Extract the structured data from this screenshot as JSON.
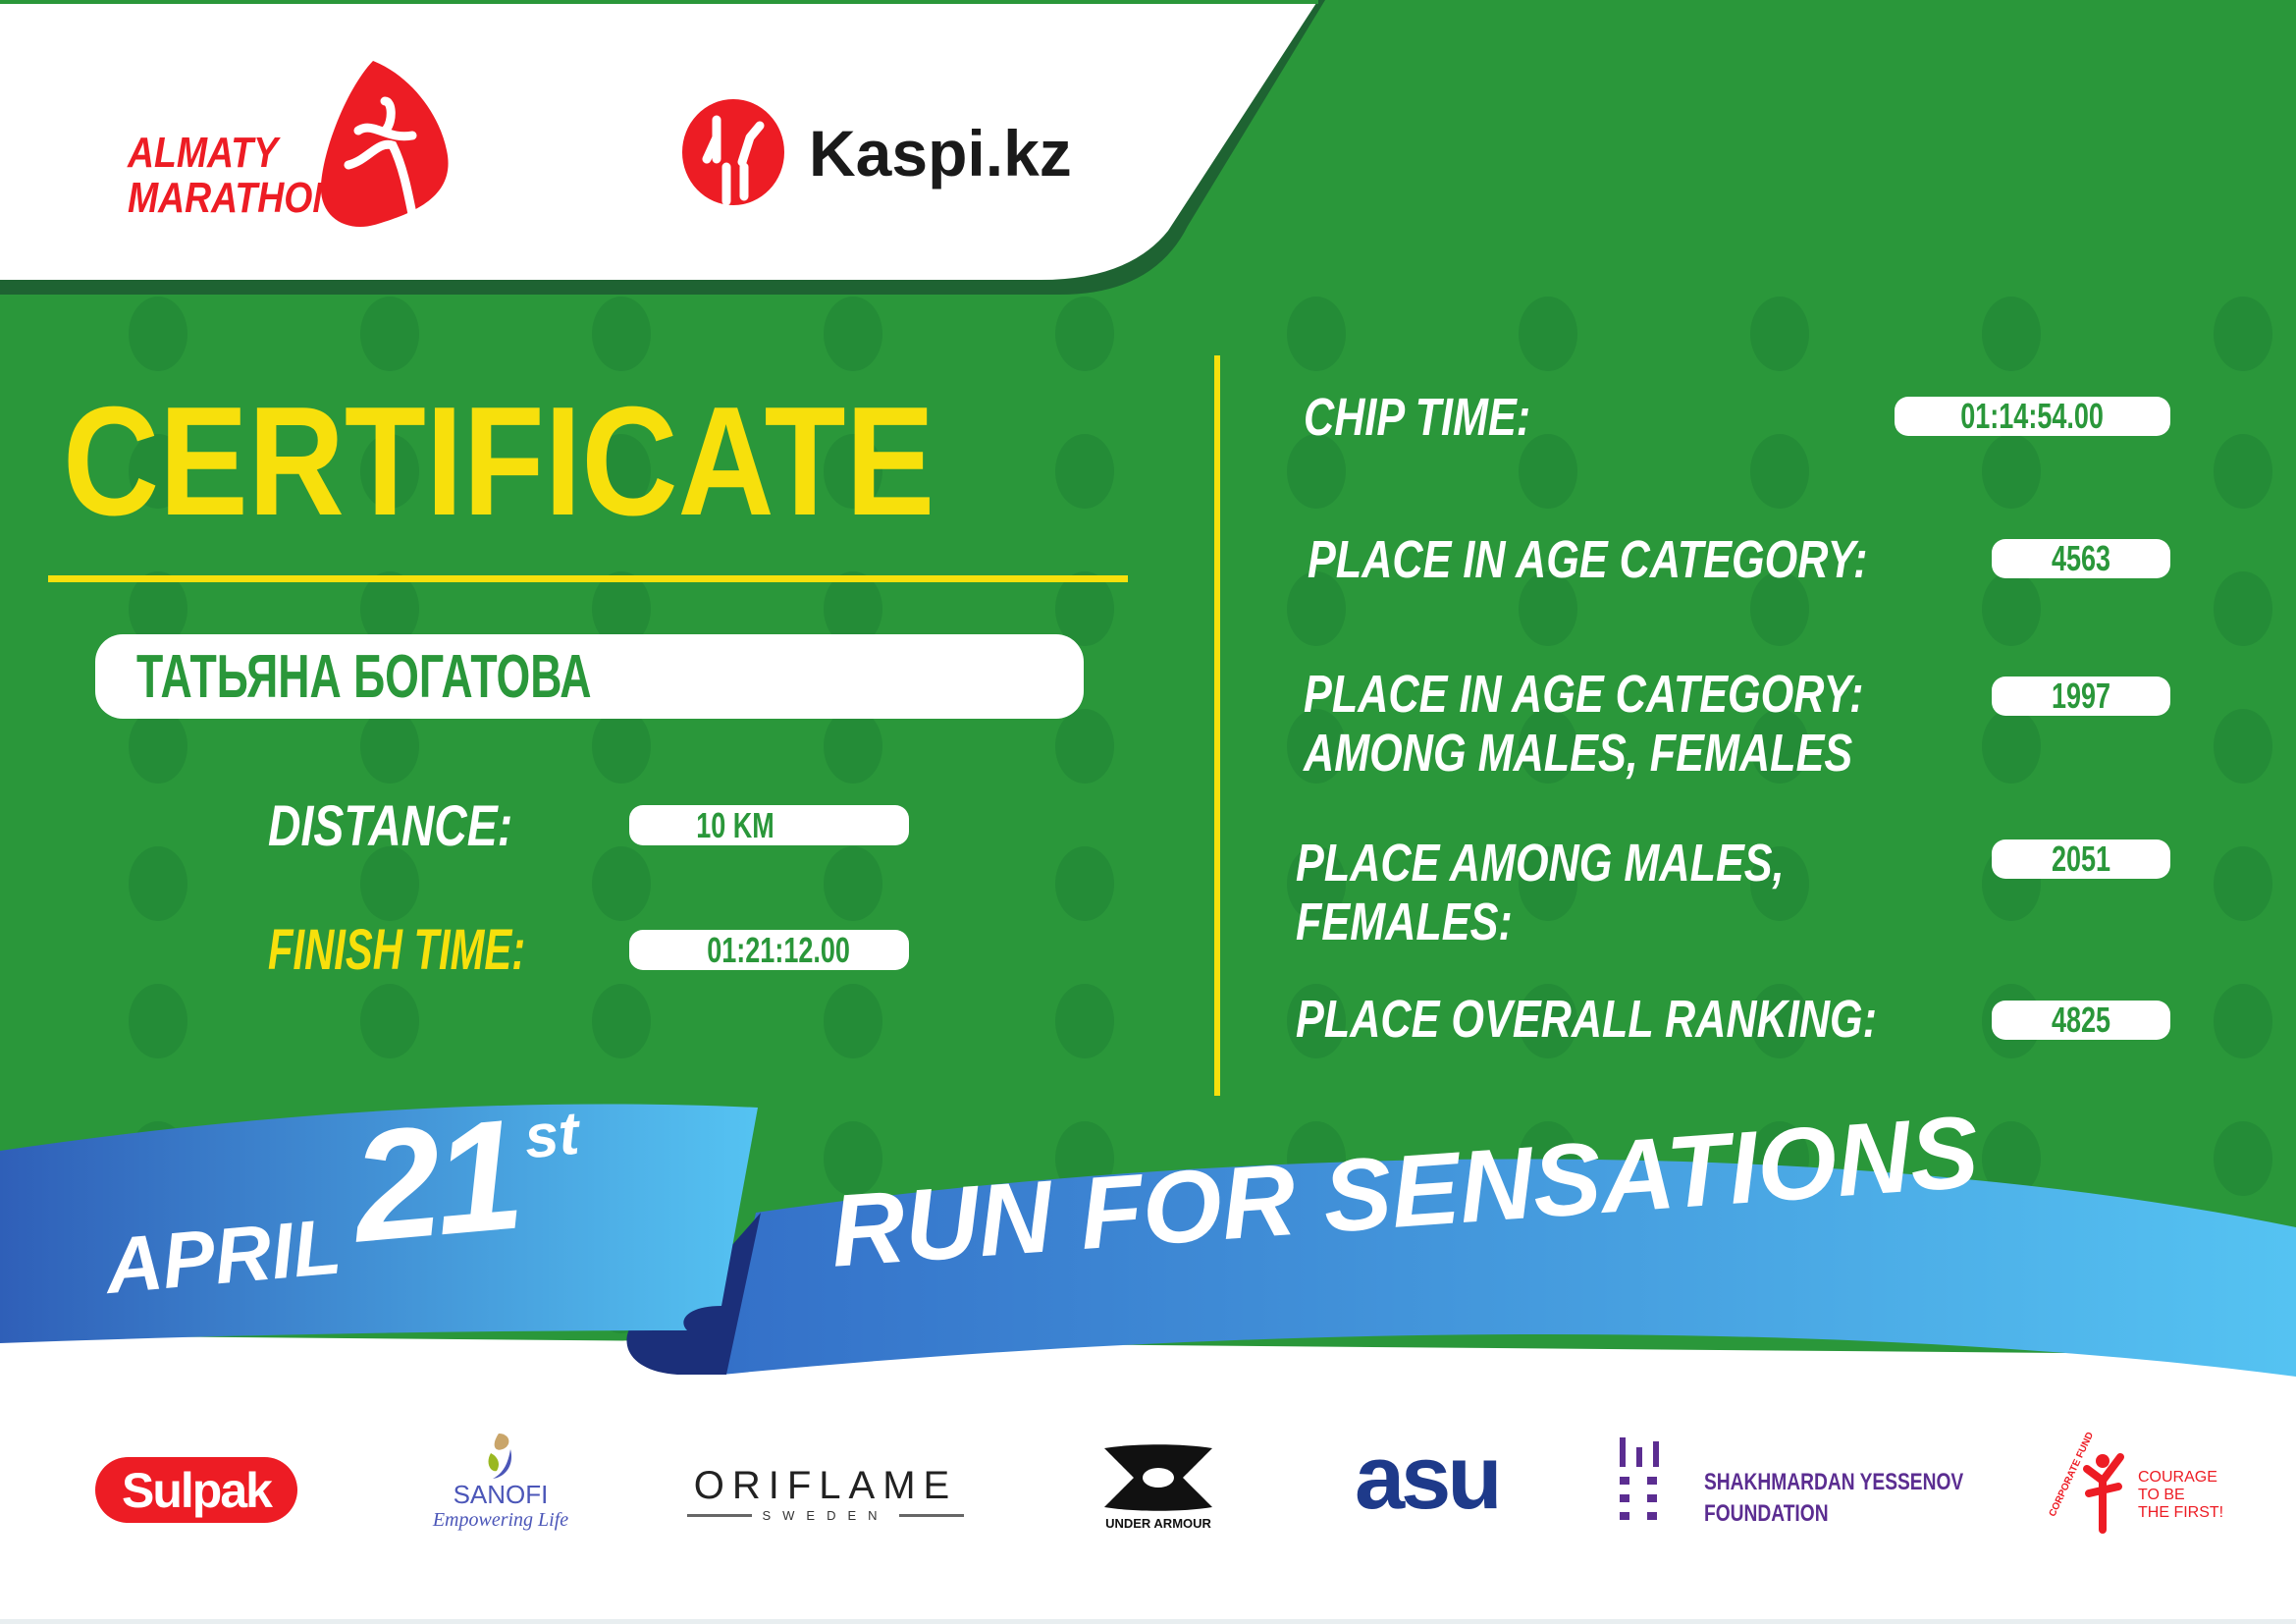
{
  "header": {
    "logo_text_line1": "ALMATY",
    "logo_text_line2": "MARATHON",
    "sponsor_name": "Kaspi.kz"
  },
  "certificate": {
    "title": "CERTIFICATE",
    "participant_name": "ТАТЬЯНА БОГАТОВА",
    "distance_label": "DISTANCE:",
    "distance_value": "10 KM",
    "finish_time_label": "FINISH TIME:",
    "finish_time_value": "01:21:12.00"
  },
  "results": [
    {
      "label_lines": [
        "CHIP TIME:"
      ],
      "value": "01:14:54.00"
    },
    {
      "label_lines": [
        "PLACE IN AGE CATEGORY:"
      ],
      "value": "4563"
    },
    {
      "label_lines": [
        "PLACE IN AGE CATEGORY:",
        "AMONG MALES, FEMALES"
      ],
      "value": "1997"
    },
    {
      "label_lines": [
        "PLACE AMONG MALES,",
        "FEMALES:"
      ],
      "value": "2051"
    },
    {
      "label_lines": [
        "PLACE OVERALL RANKING:"
      ],
      "value": "4825"
    }
  ],
  "banner": {
    "month": "APRIL",
    "day": "21",
    "day_suffix": "st",
    "slogan": "RUN FOR SENSATIONS"
  },
  "sponsors": {
    "sulpak": "Sulpak",
    "sanofi": "SANOFI",
    "sanofi_tagline": "Empowering Life",
    "oriflame": "ORIFLAME",
    "oriflame_sub": "SWEDEN",
    "under_armour": "UNDER ARMOUR",
    "asu": "asu",
    "yessenov_line1": "SHAKHMARDAN YESSENOV",
    "yessenov_line2": "FOUNDATION",
    "courage_arc": "CORPORATE FUND",
    "courage_line1": "COURAGE",
    "courage_line2": "TO BE",
    "courage_line3": "THE FIRST!"
  },
  "colors": {
    "green": "#2a973a",
    "dark_green": "#1e6332",
    "yellow": "#f7e00c",
    "red": "#ed1c24",
    "blue": "#3a7fd0",
    "light_blue": "#52c0f0"
  }
}
